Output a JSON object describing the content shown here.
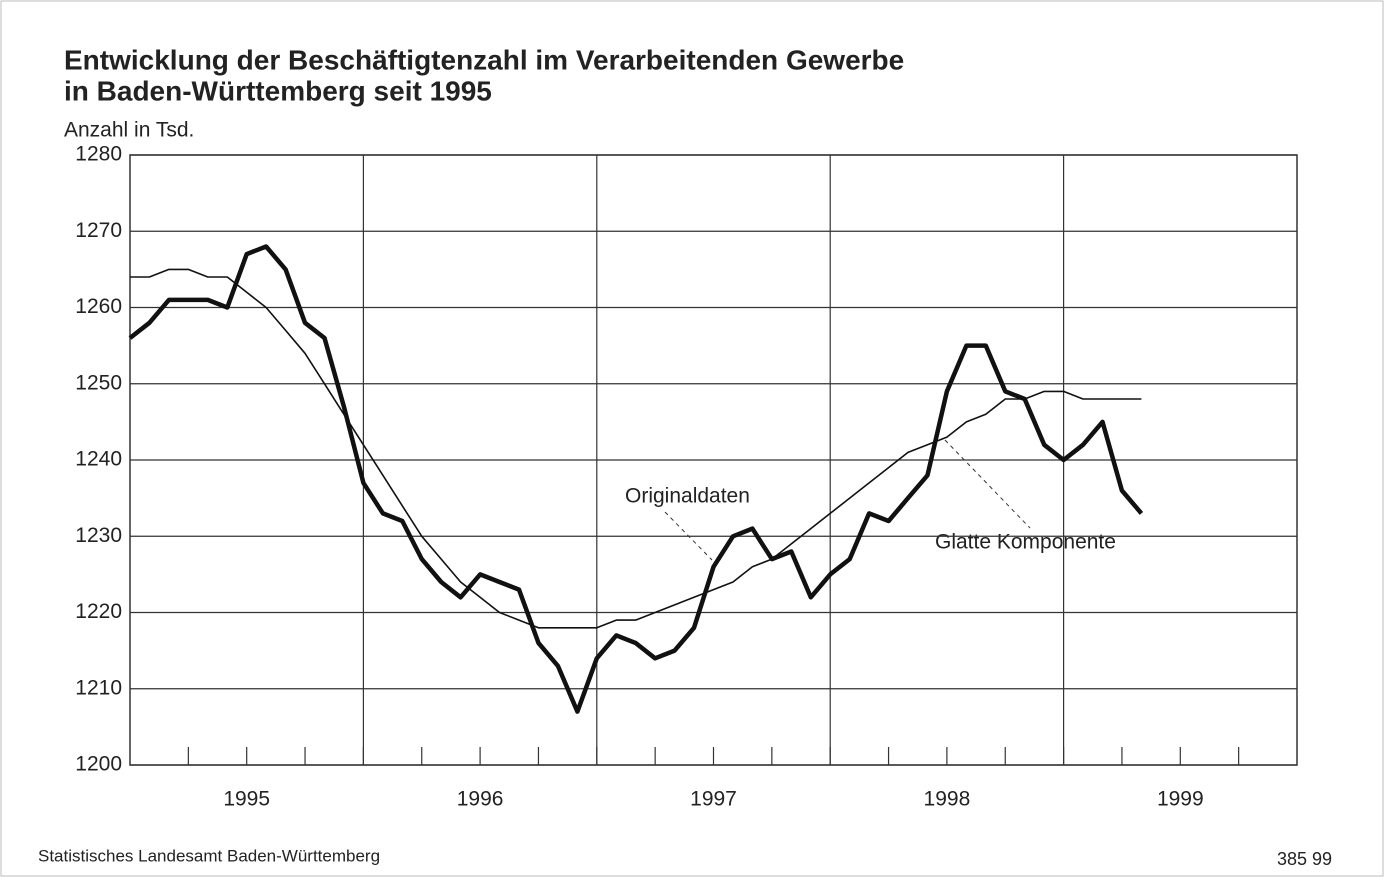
{
  "chart_data": {
    "type": "line",
    "title": [
      "Entwicklung der Beschäftigtenzahl im Verarbeitenden Gewerbe",
      "in Baden-Württemberg seit 1995"
    ],
    "y_label": "Anzahl in Tsd.",
    "x": [
      0,
      1,
      2,
      3,
      4,
      5,
      6,
      7,
      8,
      9,
      10,
      11,
      12,
      13,
      14,
      15,
      16,
      17,
      18,
      19,
      20,
      21,
      22,
      23,
      24,
      25,
      26,
      27,
      28,
      29,
      30,
      31,
      32,
      33,
      34,
      35,
      36,
      37,
      38,
      39,
      40,
      41,
      42,
      43,
      44,
      45,
      46,
      47,
      48,
      49,
      50,
      51,
      52
    ],
    "series": [
      {
        "name": "Originaldaten",
        "color": "#111111",
        "values": [
          1256,
          1258,
          1261,
          1261,
          1261,
          1260,
          1267,
          1268,
          1265,
          1258,
          1256,
          1247,
          1237,
          1233,
          1232,
          1227,
          1224,
          1222,
          1225,
          1224,
          1223,
          1216,
          1213,
          1207,
          1214,
          1217,
          1216,
          1214,
          1215,
          1218,
          1226,
          1230,
          1231,
          1227,
          1228,
          1222,
          1225,
          1227,
          1233,
          1232,
          1235,
          1238,
          1249,
          1255,
          1255,
          1249,
          1248,
          1242,
          1240,
          1242,
          1245,
          1236,
          1233
        ]
      },
      {
        "name": "Glatte Komponente",
        "color": "#111111",
        "values": [
          1264,
          1264,
          1265,
          1265,
          1264,
          1264,
          1262,
          1260,
          1257,
          1254,
          1250,
          1246,
          1242,
          1238,
          1234,
          1230,
          1227,
          1224,
          1222,
          1220,
          1219,
          1218,
          1218,
          1218,
          1218,
          1219,
          1219,
          1220,
          1221,
          1222,
          1223,
          1224,
          1226,
          1227,
          1229,
          1231,
          1233,
          1235,
          1237,
          1239,
          1241,
          1242,
          1243,
          1245,
          1246,
          1248,
          1248,
          1249,
          1249,
          1248,
          1248,
          1248,
          1248
        ]
      }
    ],
    "xlim": [
      0,
      60
    ],
    "xticks": [
      {
        "value": 6,
        "label": "1995"
      },
      {
        "value": 18,
        "label": "1996"
      },
      {
        "value": 30,
        "label": "1997"
      },
      {
        "value": 42,
        "label": "1998"
      },
      {
        "value": 54,
        "label": "1999"
      }
    ],
    "xgrid": [
      12,
      24,
      36,
      48
    ],
    "ylim": [
      1200,
      1280
    ],
    "yticks": [
      1200,
      1210,
      1220,
      1230,
      1240,
      1250,
      1260,
      1270,
      1280
    ],
    "grid": true,
    "source": "Statistisches Landesamt Baden-Württemberg",
    "code": "385 99"
  }
}
